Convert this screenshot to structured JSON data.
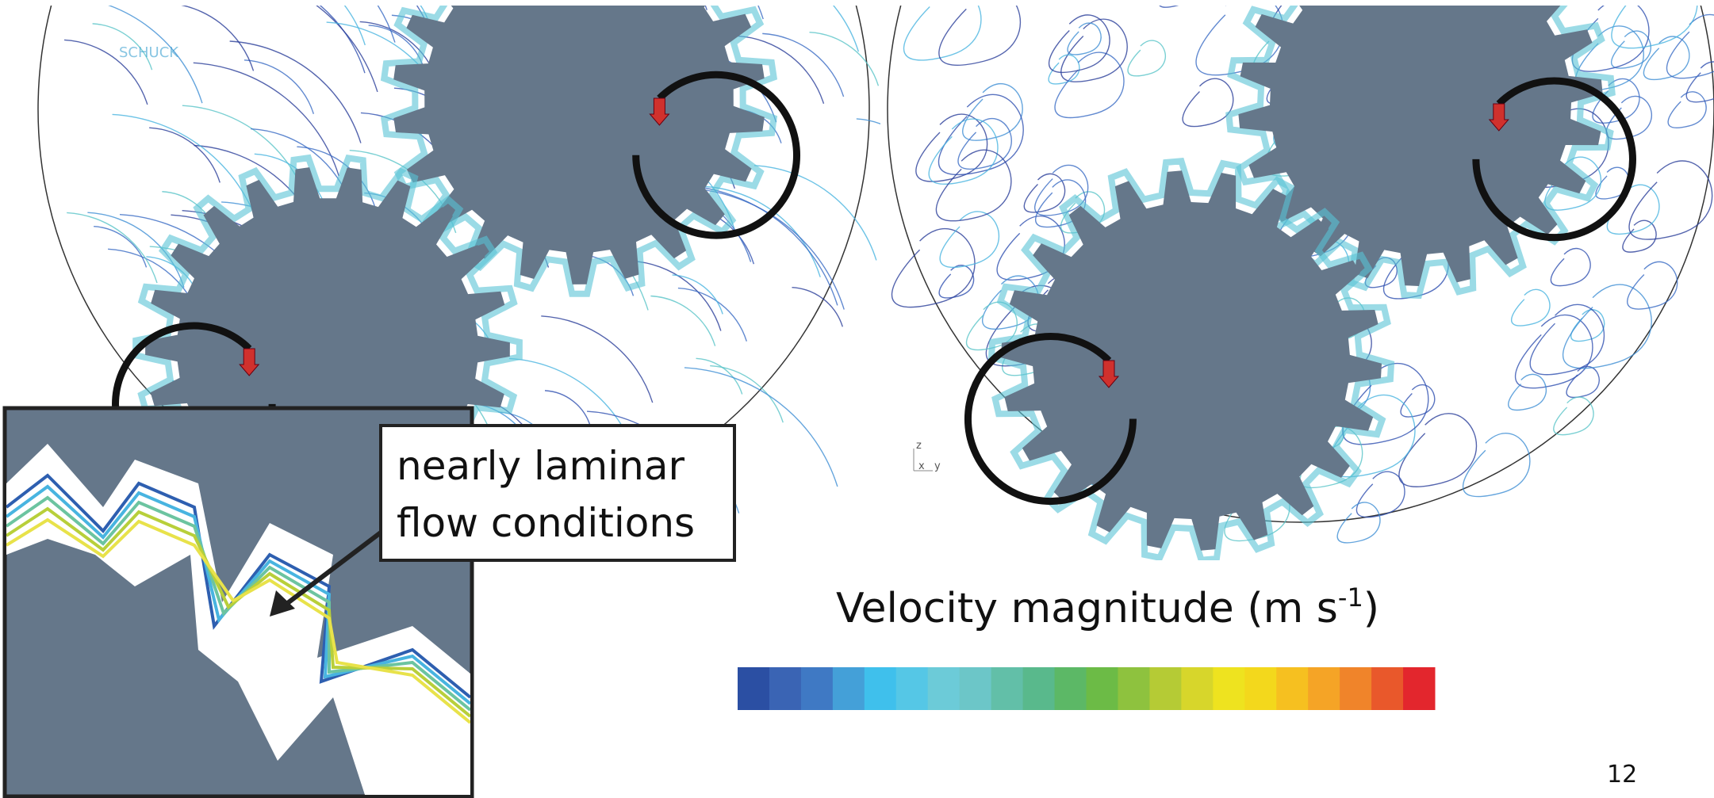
{
  "logo": "SCHUCK",
  "axes_triad": [
    "z",
    "x",
    "y"
  ],
  "callout": {
    "lines": [
      "nearly laminar",
      "flow conditions"
    ]
  },
  "colorbar": {
    "label": "Velocity magnitude (m s",
    "label_sup": "-1",
    "label_end": ")",
    "colors": [
      "#2b4fa3",
      "#3a64b4",
      "#3f79c4",
      "#44a0d8",
      "#3fc0ec",
      "#55c7e6",
      "#6ccbd8",
      "#6cc6c8",
      "#62bfa8",
      "#59b98c",
      "#5cb866",
      "#6cbb46",
      "#8ec23e",
      "#b5cb35",
      "#d7d62b",
      "#eee31f",
      "#f3d81c",
      "#f6c020",
      "#f5a426",
      "#f0842a",
      "#e9582b",
      "#e3262d"
    ]
  },
  "page_number": "12"
}
